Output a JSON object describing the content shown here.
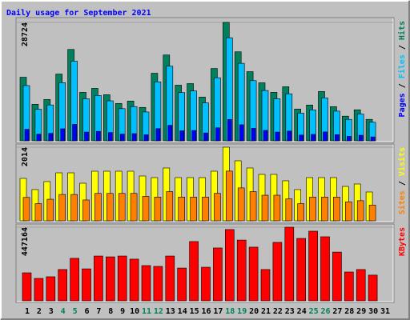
{
  "chart_data": [
    {
      "type": "bar",
      "title": "Daily usage for September 2021",
      "legend_separator": " / ",
      "ylim": [
        0,
        28724
      ],
      "yticks": [
        28724
      ],
      "series": [
        {
          "name": "Hits",
          "color": "#00805c",
          "values": [
            15420,
            8870,
            10020,
            16190,
            22170,
            11760,
            12720,
            11180,
            9060,
            9640,
            8100,
            16390,
            20820,
            13490,
            13880,
            10600,
            17540,
            28724,
            21590,
            16770,
            14070,
            11760,
            13110,
            7710,
            8680,
            11950,
            8290,
            5980,
            7520,
            5200,
            null
          ]
        },
        {
          "name": "Files",
          "color": "#00c0ff",
          "values": [
            13400,
            7650,
            8700,
            14100,
            19300,
            10200,
            11000,
            9700,
            7800,
            8300,
            7000,
            14300,
            18100,
            11700,
            12100,
            9200,
            15300,
            25000,
            18800,
            14600,
            12200,
            10200,
            11400,
            6700,
            7500,
            10400,
            7200,
            5200,
            6500,
            4500,
            null
          ]
        },
        {
          "name": "Pages",
          "color": "#0000ff",
          "values": [
            2780,
            1600,
            1800,
            2910,
            3990,
            2120,
            2290,
            2010,
            1630,
            1740,
            1460,
            2950,
            3750,
            2430,
            2500,
            1910,
            3160,
            5170,
            3890,
            3020,
            2530,
            2120,
            2360,
            1390,
            1560,
            2150,
            1490,
            1080,
            1350,
            940,
            null
          ]
        }
      ]
    },
    {
      "type": "bar",
      "legend_separator": " / ",
      "ylim": [
        0,
        2014
      ],
      "yticks": [
        2014
      ],
      "series": [
        {
          "name": "Visits",
          "color": "#ffff00",
          "values": [
            1160,
            854,
            1073,
            1313,
            1313,
            1029,
            1357,
            1357,
            1357,
            1357,
            1226,
            1182,
            1445,
            1182,
            1182,
            1182,
            1357,
            2014,
            1642,
            1445,
            1270,
            1270,
            1095,
            854,
            1182,
            1182,
            1182,
            941,
            1007,
            788,
            null
          ]
        },
        {
          "name": "Sites",
          "color": "#ff8000",
          "values": [
            640,
            470,
            590,
            720,
            720,
            570,
            750,
            750,
            750,
            750,
            670,
            650,
            800,
            650,
            650,
            650,
            750,
            1360,
            900,
            800,
            700,
            700,
            600,
            470,
            650,
            650,
            650,
            520,
            550,
            430,
            null
          ]
        }
      ]
    },
    {
      "type": "bar",
      "ylim": [
        0,
        447164
      ],
      "yticks": [
        447164
      ],
      "categories": [
        "1",
        "2",
        "3",
        "4",
        "5",
        "6",
        "7",
        "8",
        "9",
        "10",
        "11",
        "12",
        "13",
        "14",
        "15",
        "16",
        "17",
        "18",
        "19",
        "20",
        "21",
        "22",
        "23",
        "24",
        "25",
        "26",
        "27",
        "28",
        "29",
        "30",
        "31"
      ],
      "category_colors": [
        "#000000",
        "#000000",
        "#000000",
        "#00805c",
        "#00805c",
        "#000000",
        "#000000",
        "#000000",
        "#000000",
        "#000000",
        "#00805c",
        "#00805c",
        "#000000",
        "#000000",
        "#000000",
        "#000000",
        "#000000",
        "#00805c",
        "#00805c",
        "#000000",
        "#000000",
        "#000000",
        "#000000",
        "#000000",
        "#00805c",
        "#00805c",
        "#000000",
        "#000000",
        "#000000",
        "#000000",
        "#000000"
      ],
      "series": [
        {
          "name": "KBytes",
          "color": "#ff0000",
          "values": [
            170000,
            136000,
            146000,
            190000,
            258000,
            194000,
            272000,
            267000,
            272000,
            253000,
            214000,
            209000,
            272000,
            199000,
            360000,
            204000,
            321000,
            433000,
            369000,
            326000,
            190000,
            355000,
            447164,
            379000,
            423000,
            389000,
            296000,
            175000,
            190000,
            156000,
            null
          ]
        }
      ]
    }
  ]
}
